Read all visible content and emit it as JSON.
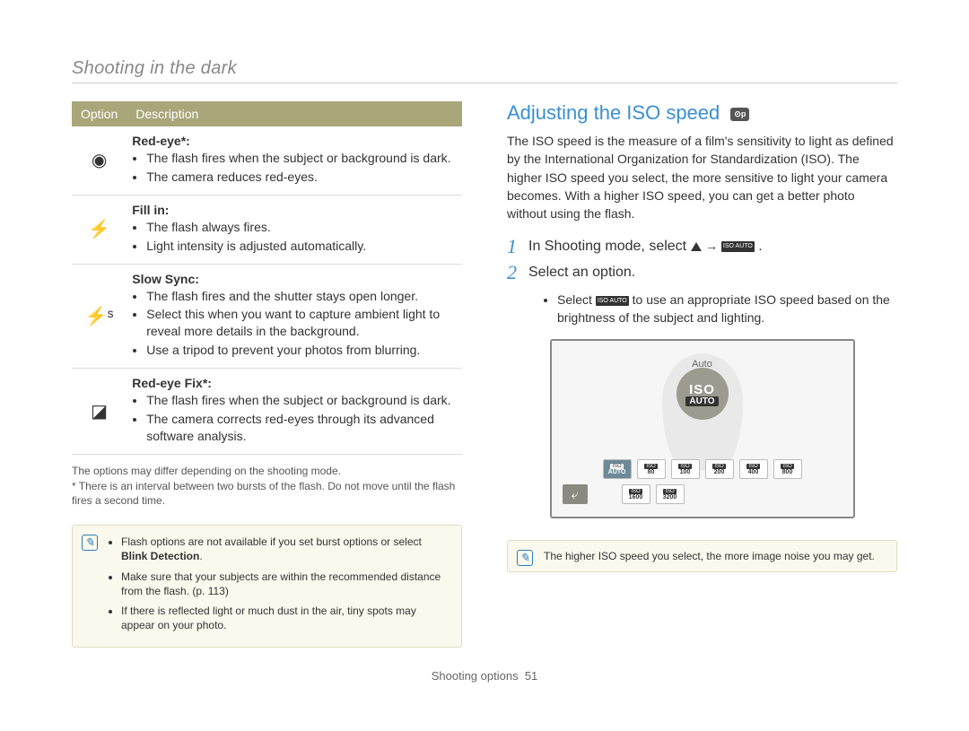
{
  "header": "Shooting in the dark",
  "table": {
    "col1": "Option",
    "col2": "Description",
    "rows": [
      {
        "icon": "◉",
        "title": "Red-eye*:",
        "items": [
          "The flash fires when the subject or background is dark.",
          "The camera reduces red-eyes."
        ]
      },
      {
        "icon": "⚡",
        "title": "Fill in:",
        "items": [
          "The flash always fires.",
          "Light intensity is adjusted automatically."
        ]
      },
      {
        "icon": "⚡ˢ",
        "title": "Slow Sync:",
        "items": [
          "The flash fires and the shutter stays open longer.",
          "Select this when you want to capture ambient light to reveal more details in the background.",
          "Use a tripod to prevent your photos from blurring."
        ]
      },
      {
        "icon": "◪",
        "title": "Red-eye Fix*:",
        "items": [
          "The flash fires when the subject or background is dark.",
          "The camera corrects red-eyes through its advanced software analysis."
        ]
      }
    ]
  },
  "footnotes": {
    "l1": "The options may differ depending on the shooting mode.",
    "l2": "* There is an interval between two bursts of the flash. Do not move until the flash fires a second time."
  },
  "leftInfo": {
    "i1a": "Flash options are not available if you set burst options or select ",
    "i1b": "Blink Detection",
    "i1c": ".",
    "i2": "Make sure that your subjects are within the recommended distance from the flash. (p. 113)",
    "i3": "If there is reflected light or much dust in the air, tiny spots may appear on your photo."
  },
  "right": {
    "title": "Adjusting the ISO speed",
    "modeBadge": "⊙p",
    "intro": "The ISO speed is the measure of a film's sensitivity to light as defined by the International Organization for Standardization (ISO). The higher ISO speed you select, the more sensitive to light your camera becomes. With a higher ISO speed, you can get a better photo without using the flash.",
    "step1": "In Shooting mode, select ",
    "step1end": ".",
    "step2": "Select an option.",
    "sub_a": "Select ",
    "sub_b": " to use an appropriate ISO speed based on the brightness of the subject and lighting.",
    "isoAutoMini": "ISO AUTO",
    "screen": {
      "autoLabel": "Auto",
      "badgeTop": "ISO",
      "badgeBot": "AUTO",
      "chips1": [
        "AUTO",
        "80",
        "100",
        "200",
        "400",
        "800"
      ],
      "chips2": [
        "1600",
        "3200"
      ]
    },
    "info": "The higher ISO speed you select, the more image noise you may get."
  },
  "footer": {
    "section": "Shooting options",
    "page": "51"
  },
  "colors": {
    "tableHeader": "#a9a67a",
    "accent": "#3b8fd1",
    "infoBg": "#fbf8ed",
    "infoBorder": "#e0dcc0"
  }
}
